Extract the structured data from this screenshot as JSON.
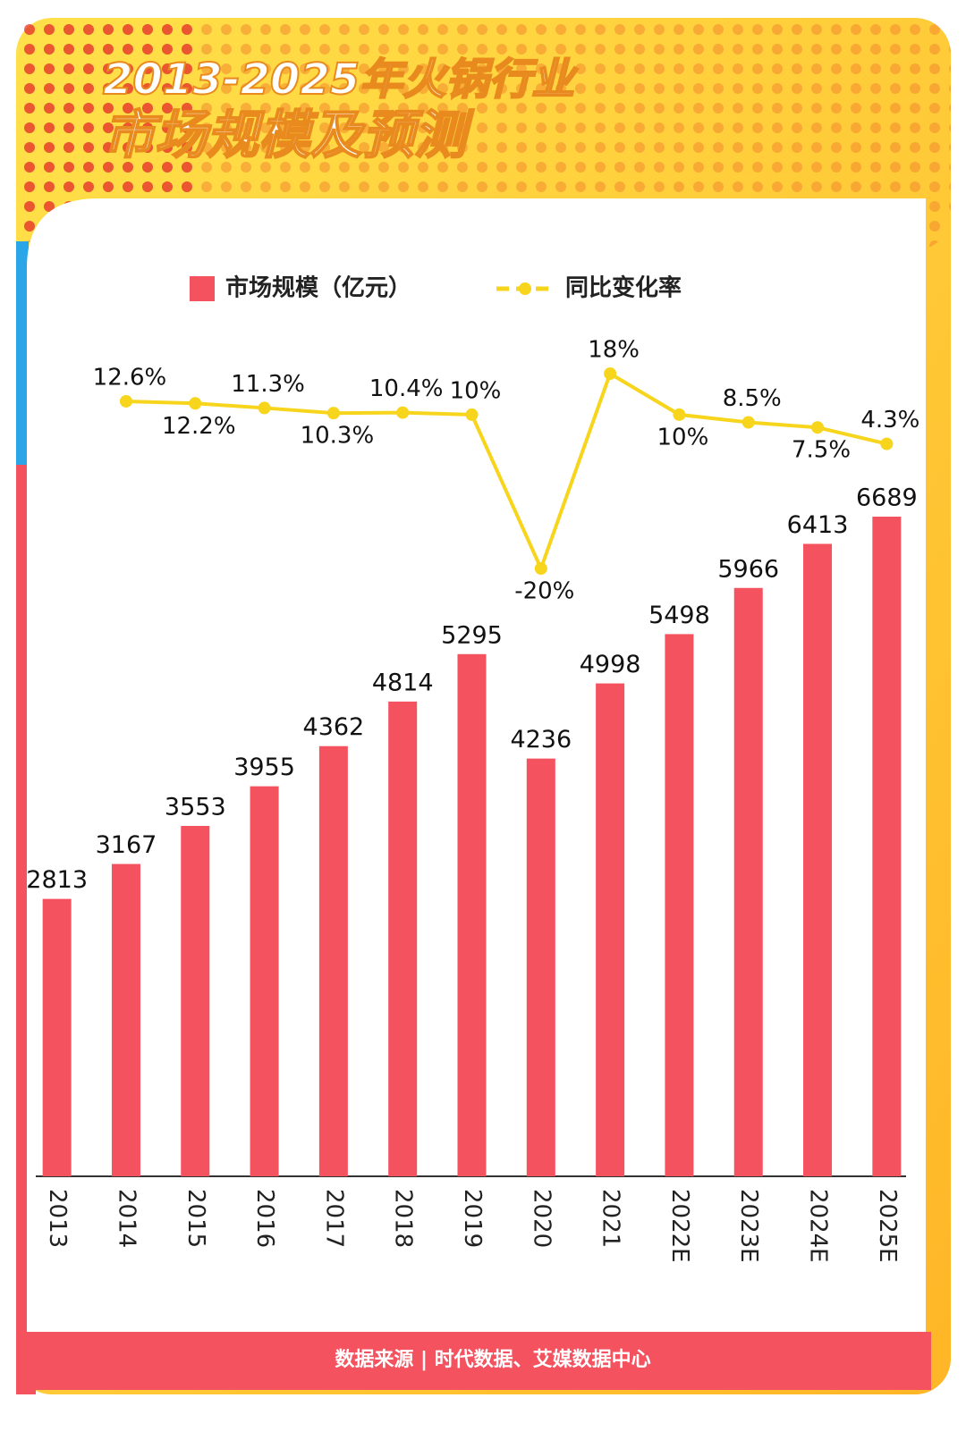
{
  "chart_data": {
    "type": "bar_line",
    "title": "2013-2025年火锅行业",
    "subtitle": "市场规模及预测",
    "source": "数据来源 | 时代数据、艾媒数据中心",
    "categories": [
      "2013",
      "2014",
      "2015",
      "2016",
      "2017",
      "2018",
      "2019",
      "2020",
      "2021",
      "2022E",
      "2023E",
      "2024E",
      "2025E"
    ],
    "series": [
      {
        "name": "市场规模（亿元）",
        "type": "bar",
        "color": "#f5525f",
        "values": [
          2813,
          3167,
          3553,
          3955,
          4362,
          4814,
          5295,
          4236,
          4998,
          5498,
          5966,
          6413,
          6689
        ]
      },
      {
        "name": "同比变化率",
        "type": "line",
        "color": "#f7d51d",
        "values": [
          null,
          12.6,
          12.2,
          11.3,
          10.3,
          10.4,
          10,
          -20,
          18,
          10,
          8.5,
          7.5,
          4.3
        ],
        "value_labels": [
          null,
          "12.6%",
          "12.2%",
          "11.3%",
          "10.3%",
          "10.4%",
          "10%",
          "-20%",
          "18%",
          "10%",
          "8.5%",
          "7.5%",
          "4.3%"
        ]
      }
    ]
  }
}
